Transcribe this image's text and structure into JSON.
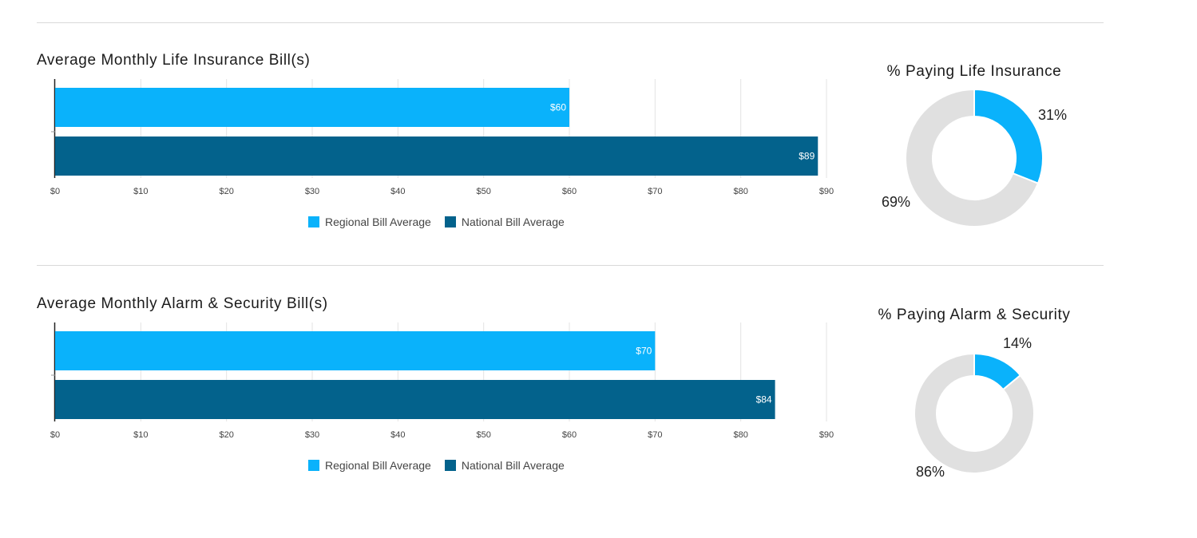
{
  "colors": {
    "regional": "#0ab2fb",
    "national": "#03628c",
    "other": "#e0e0e0",
    "grid": "#e3e3e3",
    "axis": "#222222"
  },
  "chart_data": [
    {
      "type": "bar",
      "title": "Average Monthly Life Insurance Bill(s)",
      "orientation": "horizontal",
      "series": [
        {
          "name": "Regional Bill Average",
          "values": [
            60
          ],
          "label": "$60"
        },
        {
          "name": "National Bill Average",
          "values": [
            89
          ],
          "label": "$89"
        }
      ],
      "xlim": [
        0,
        90
      ],
      "xticks": [
        "$0",
        "$10",
        "$20",
        "$30",
        "$40",
        "$50",
        "$60",
        "$70",
        "$80",
        "$90"
      ],
      "grid": true,
      "legend": "bottom"
    },
    {
      "type": "pie",
      "title": "% Paying Life Insurance",
      "donut": true,
      "slices": [
        {
          "value": 31,
          "label": "31%"
        },
        {
          "value": 69,
          "label": "69%"
        }
      ]
    },
    {
      "type": "bar",
      "title": "Average Monthly Alarm & Security Bill(s)",
      "orientation": "horizontal",
      "series": [
        {
          "name": "Regional Bill Average",
          "values": [
            70
          ],
          "label": "$70"
        },
        {
          "name": "National Bill Average",
          "values": [
            84
          ],
          "label": "$84"
        }
      ],
      "xlim": [
        0,
        90
      ],
      "xticks": [
        "$0",
        "$10",
        "$20",
        "$30",
        "$40",
        "$50",
        "$60",
        "$70",
        "$80",
        "$90"
      ],
      "grid": true,
      "legend": "bottom"
    },
    {
      "type": "pie",
      "title": "% Paying Alarm & Security",
      "donut": true,
      "slices": [
        {
          "value": 14,
          "label": "14%"
        },
        {
          "value": 86,
          "label": "86%"
        }
      ]
    }
  ]
}
